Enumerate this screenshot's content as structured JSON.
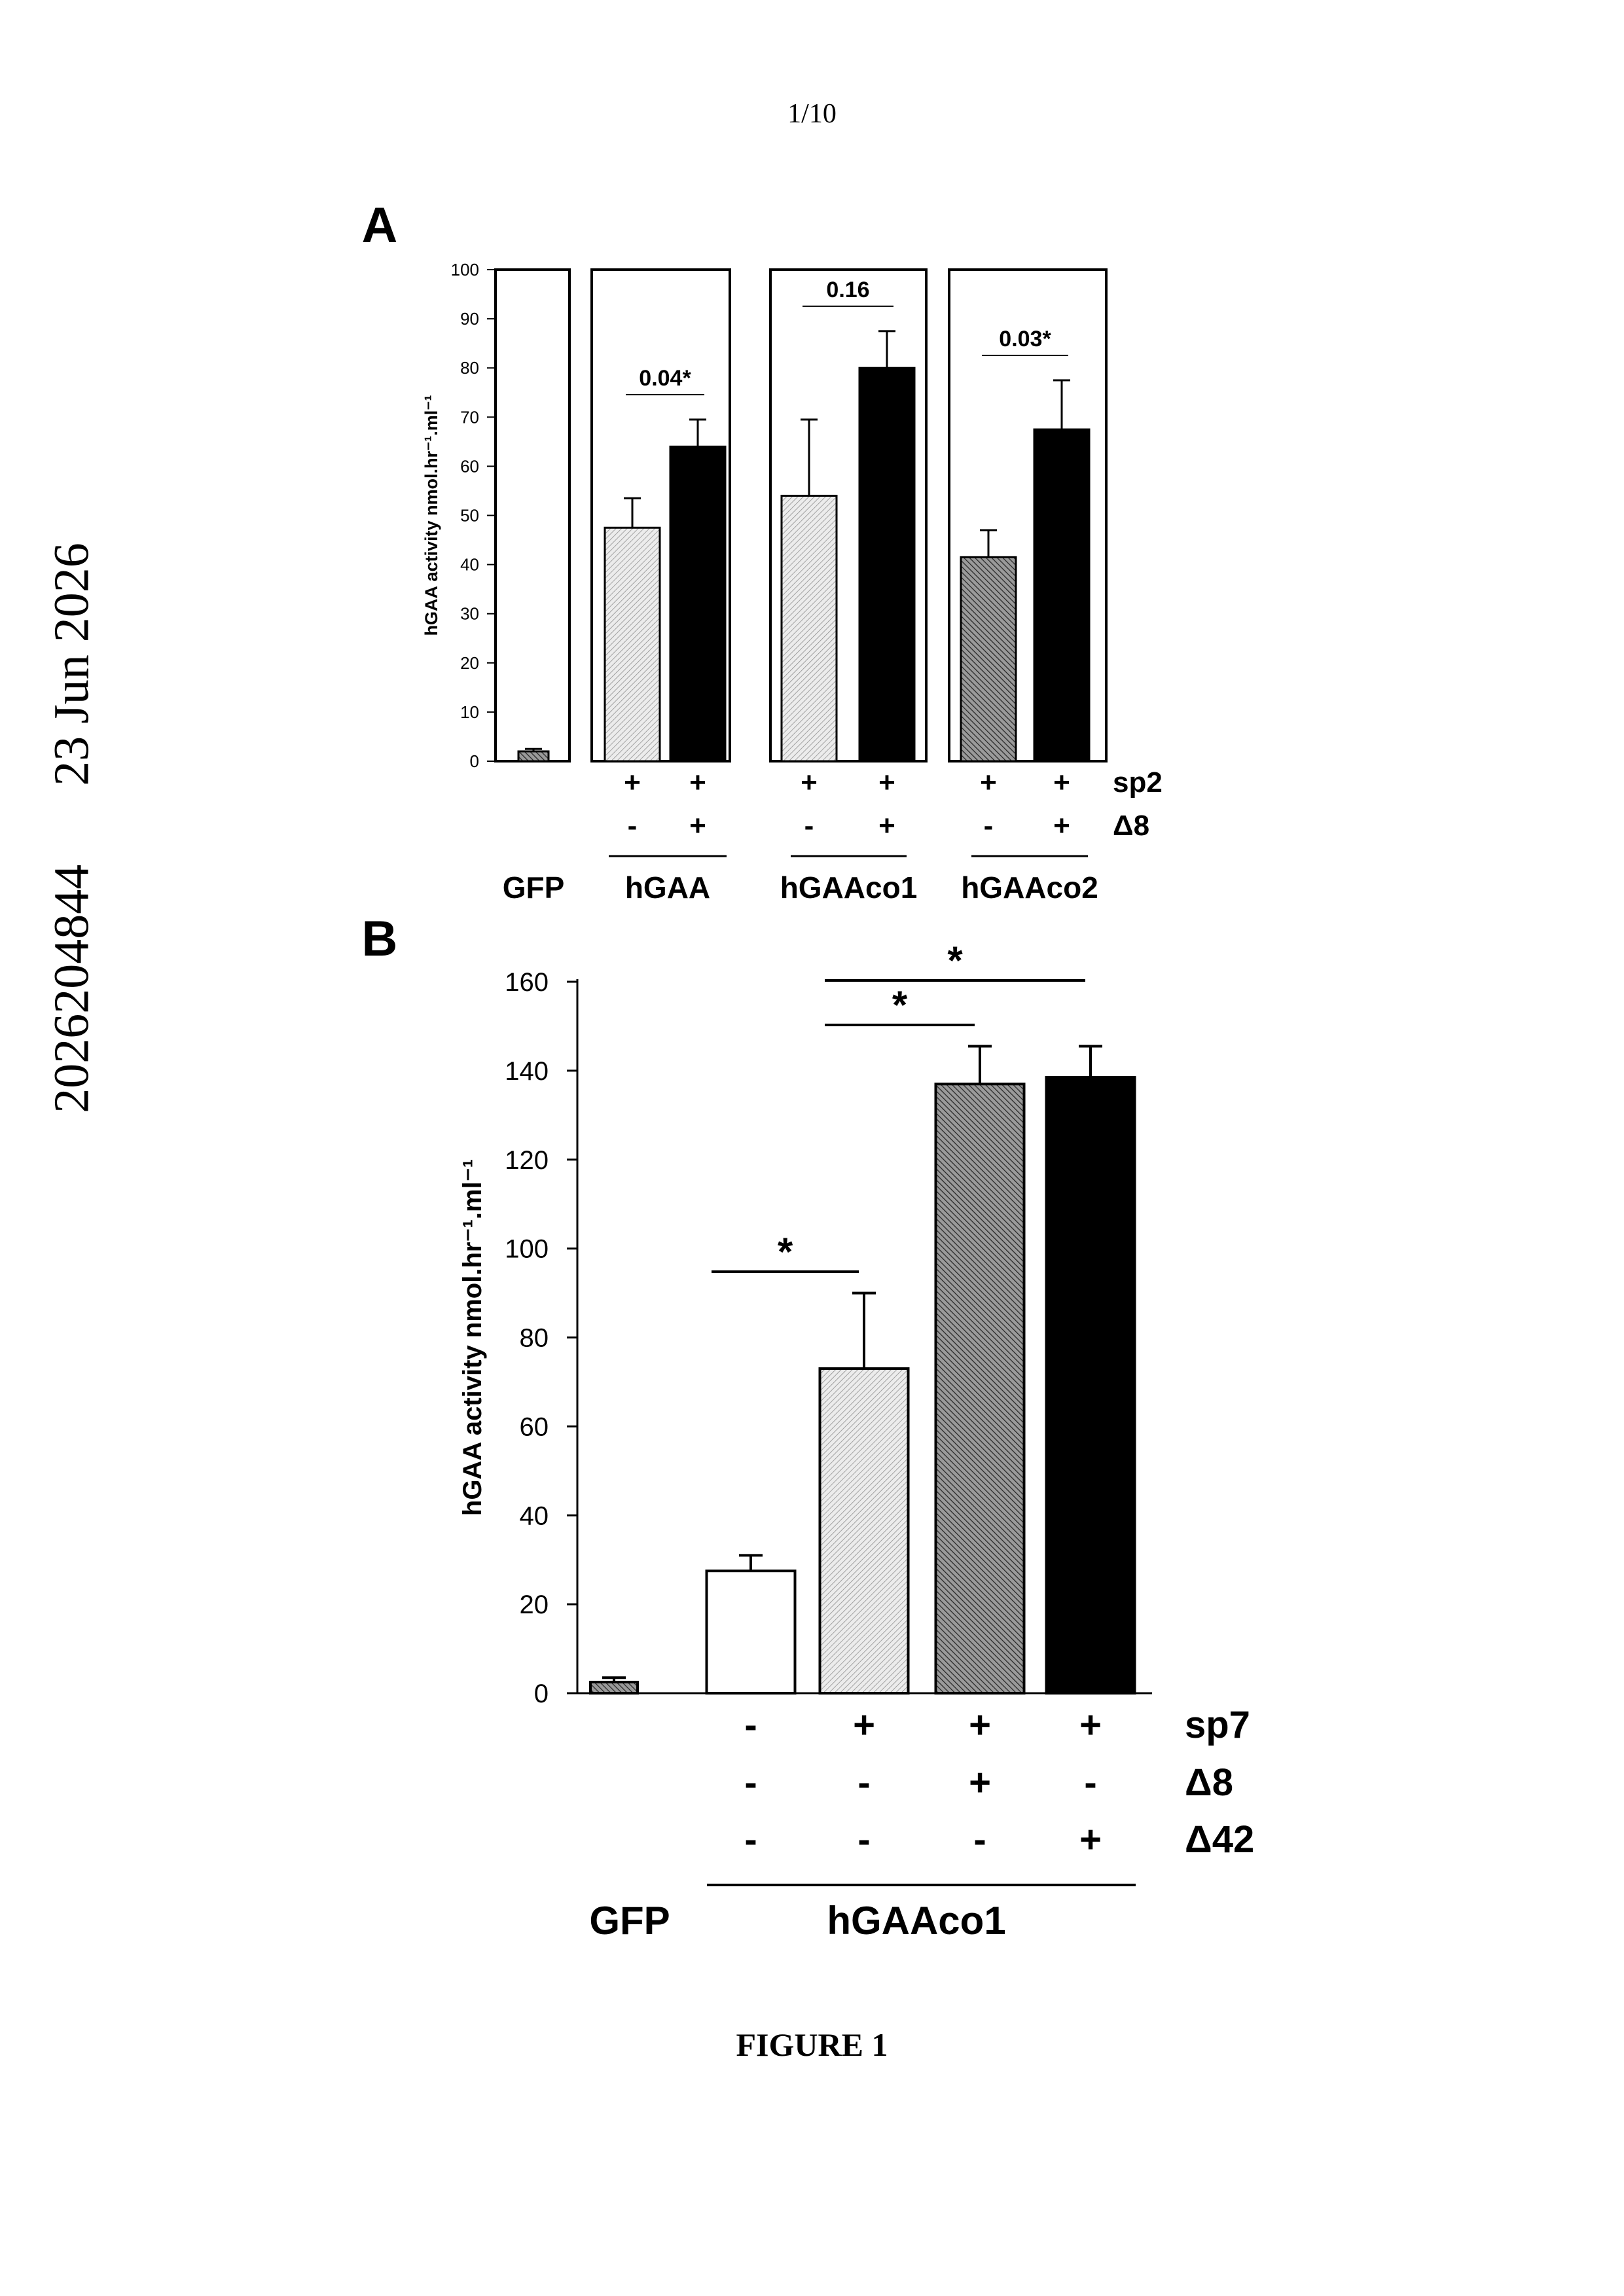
{
  "page_number": "1/10",
  "side_text": {
    "number": "2026204844",
    "date": "23 Jun 2026"
  },
  "figure_caption": "FIGURE 1",
  "chart_data": [
    {
      "type": "bar",
      "panel_label": "A",
      "ylabel": "hGAA activity nmol.hr⁻¹.ml⁻¹",
      "ylim": [
        0,
        100
      ],
      "yticks": [
        0,
        10,
        20,
        30,
        40,
        50,
        60,
        70,
        80,
        90,
        100
      ],
      "groups": [
        {
          "name": "GFP",
          "bars": [
            {
              "value": 2,
              "error": 0.5,
              "fill": "hatch-dark"
            }
          ]
        },
        {
          "name": "hGAA",
          "bars": [
            {
              "value": 47.5,
              "error": 6,
              "fill": "hatch-light"
            },
            {
              "value": 64,
              "error": 5.5,
              "fill": "black"
            }
          ],
          "pvalue": "0.04*"
        },
        {
          "name": "hGAAco1",
          "bars": [
            {
              "value": 54,
              "error": 15.5,
              "fill": "hatch-light"
            },
            {
              "value": 80,
              "error": 7.5,
              "fill": "black"
            }
          ],
          "pvalue": "0.16"
        },
        {
          "name": "hGAAco2",
          "bars": [
            {
              "value": 41.5,
              "error": 5.5,
              "fill": "hatch-dark"
            },
            {
              "value": 67.5,
              "error": 10,
              "fill": "black"
            }
          ],
          "pvalue": "0.03*"
        }
      ],
      "condition_rows": [
        {
          "label": "sp2",
          "marks": [
            "+",
            "+",
            "+",
            "+",
            "+",
            "+"
          ]
        },
        {
          "label": "Δ8",
          "marks": [
            "-",
            "+",
            "-",
            "+",
            "-",
            "+"
          ]
        }
      ]
    },
    {
      "type": "bar",
      "panel_label": "B",
      "ylabel": "hGAA activity nmol.hr⁻¹.ml⁻¹",
      "ylim": [
        0,
        160
      ],
      "yticks": [
        0,
        20,
        40,
        60,
        80,
        100,
        120,
        140,
        160
      ],
      "bars": [
        {
          "value": 2.5,
          "error": 1,
          "fill": "hatch-dark"
        },
        {
          "value": 27.5,
          "error": 3.5,
          "fill": "white"
        },
        {
          "value": 73,
          "error": 17,
          "fill": "hatch-light"
        },
        {
          "value": 137,
          "error": 8.5,
          "fill": "hatch-dark"
        },
        {
          "value": 138.5,
          "error": 7,
          "fill": "black"
        }
      ],
      "significance": [
        {
          "from": 1,
          "to": 2,
          "label": "*"
        },
        {
          "from": 2,
          "to": 3,
          "label": "*"
        },
        {
          "from": 2,
          "to": 4,
          "label": "*"
        }
      ],
      "condition_rows": [
        {
          "label": "sp7",
          "marks": [
            "-",
            "+",
            "+",
            "+"
          ]
        },
        {
          "label": "Δ8",
          "marks": [
            "-",
            "-",
            "+",
            "-"
          ]
        },
        {
          "label": "Δ42",
          "marks": [
            "-",
            "-",
            "-",
            "+"
          ]
        }
      ],
      "group_labels": [
        "GFP",
        "hGAAco1"
      ]
    }
  ]
}
